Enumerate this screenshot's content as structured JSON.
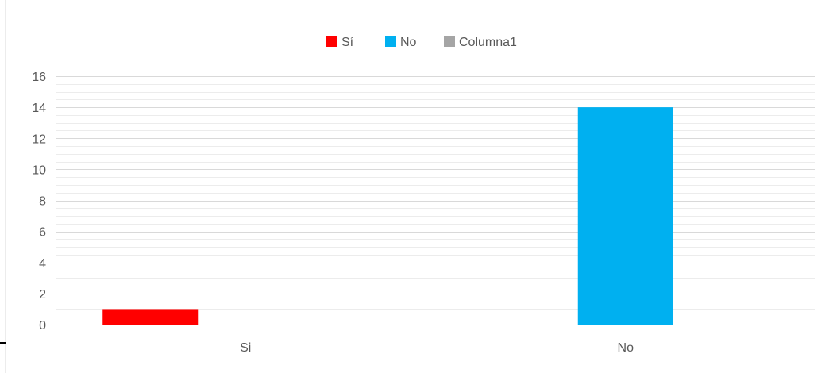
{
  "chart_data": {
    "type": "bar",
    "categories": [
      "Si",
      "No"
    ],
    "series": [
      {
        "name": "Sí",
        "color": "#ff0000",
        "values": [
          1,
          0
        ]
      },
      {
        "name": "No",
        "color": "#00b0f0",
        "values": [
          0,
          14
        ]
      },
      {
        "name": "Columna1",
        "color": "#a5a5a5",
        "values": [
          0,
          0
        ]
      }
    ],
    "y_ticks": [
      "0",
      "2",
      "4",
      "6",
      "8",
      "10",
      "12",
      "14",
      "16"
    ],
    "ylim": [
      0,
      16
    ],
    "legend_position": "top",
    "grid": true,
    "grid_color": "#d9d9d9",
    "axis_color": "#bfbfbf"
  }
}
